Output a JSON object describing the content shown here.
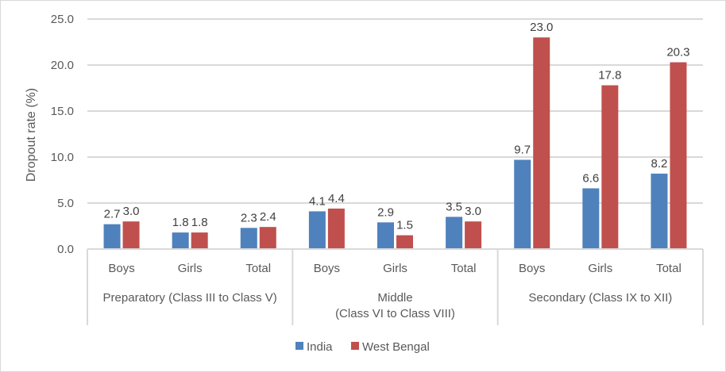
{
  "chart_data": {
    "type": "bar",
    "title": "",
    "xlabel": "",
    "ylabel": "Dropout rate (%)",
    "ylim": [
      0,
      25
    ],
    "yticks": [
      "0.0",
      "5.0",
      "10.0",
      "15.0",
      "20.0",
      "25.0"
    ],
    "grid": true,
    "legend_position": "bottom",
    "groups": [
      {
        "label": "Preparatory (Class III to Class V)",
        "lines": [
          "Preparatory (Class III to Class V)"
        ]
      },
      {
        "label": "Middle (Class VI to Class VIII)",
        "lines": [
          "Middle",
          "(Class VI to Class VIII)"
        ]
      },
      {
        "label": "Secondary (Class IX to XII)",
        "lines": [
          "Secondary (Class IX to XII)"
        ]
      }
    ],
    "categories": [
      "Boys",
      "Girls",
      "Total",
      "Boys",
      "Girls",
      "Total",
      "Boys",
      "Girls",
      "Total"
    ],
    "series": [
      {
        "name": "India",
        "color": "#4f81bd",
        "values": [
          2.7,
          1.8,
          2.3,
          4.1,
          2.9,
          3.5,
          9.7,
          6.6,
          8.2
        ],
        "labels": [
          "2.7",
          "1.8",
          "2.3",
          "4.1",
          "2.9",
          "3.5",
          "9.7",
          "6.6",
          "8.2"
        ]
      },
      {
        "name": "West Bengal",
        "color": "#c0504d",
        "values": [
          3.0,
          1.8,
          2.4,
          4.4,
          1.5,
          3.0,
          23.0,
          17.8,
          20.3
        ],
        "labels": [
          "3.0",
          "1.8",
          "2.4",
          "4.4",
          "1.5",
          "3.0",
          "23.0",
          "17.8",
          "20.3"
        ]
      }
    ]
  }
}
